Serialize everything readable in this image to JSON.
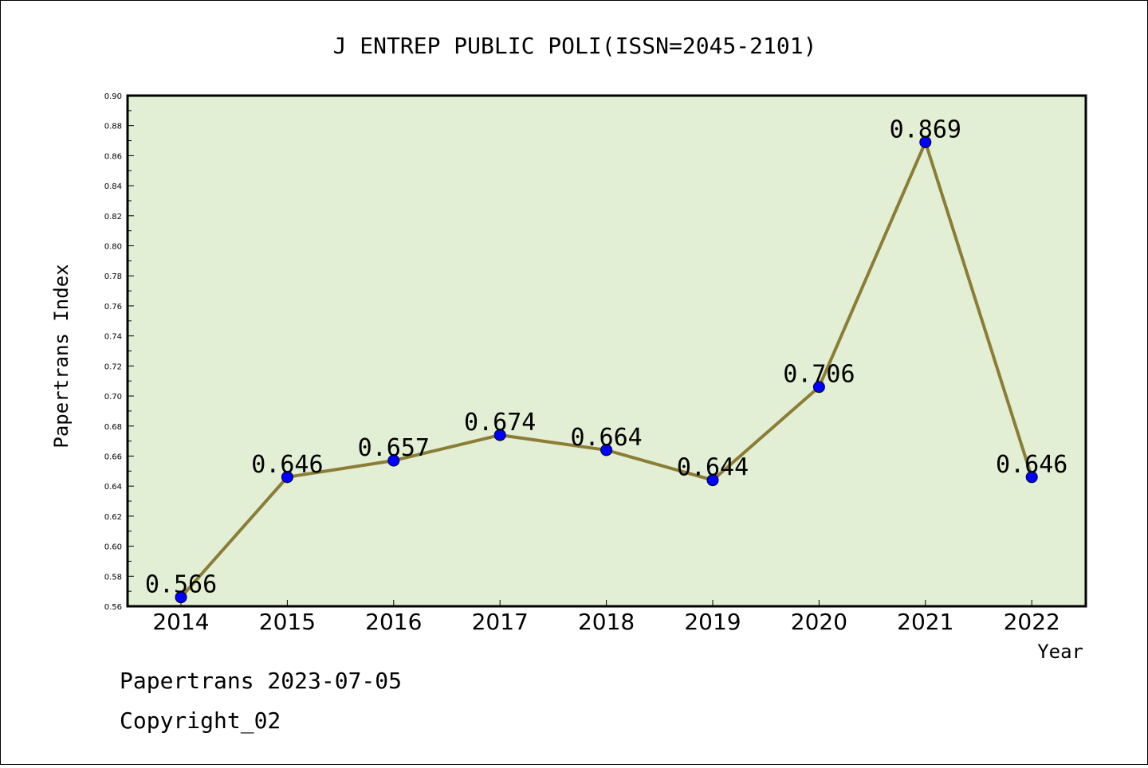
{
  "chart_data": {
    "type": "line",
    "title": "J ENTREP PUBLIC POLI(ISSN=2045-2101)",
    "xlabel": "Year",
    "ylabel": "Papertrans Index",
    "x": [
      "2014",
      "2015",
      "2016",
      "2017",
      "2018",
      "2019",
      "2020",
      "2021",
      "2022"
    ],
    "series": [
      {
        "values": [
          0.566,
          0.646,
          0.657,
          0.674,
          0.664,
          0.644,
          0.706,
          0.869,
          0.646
        ],
        "labels": [
          "0.566",
          "0.646",
          "0.657",
          "0.674",
          "0.664",
          "0.644",
          "0.706",
          "0.869",
          "0.646"
        ]
      }
    ],
    "ylim": [
      0.56,
      0.9
    ],
    "yticks": [
      "0.56",
      "0.58",
      "0.60",
      "0.62",
      "0.64",
      "0.66",
      "0.68",
      "0.70",
      "0.72",
      "0.74",
      "0.76",
      "0.78",
      "0.80",
      "0.82",
      "0.84",
      "0.86",
      "0.88",
      "0.90"
    ],
    "grid": false,
    "colors": {
      "plot_background": "#e2efd4",
      "line": "#8b7d35",
      "marker": "#0000ff"
    }
  },
  "footer": {
    "date_line": "Papertrans 2023-07-05",
    "copyright": "Copyright_02"
  }
}
